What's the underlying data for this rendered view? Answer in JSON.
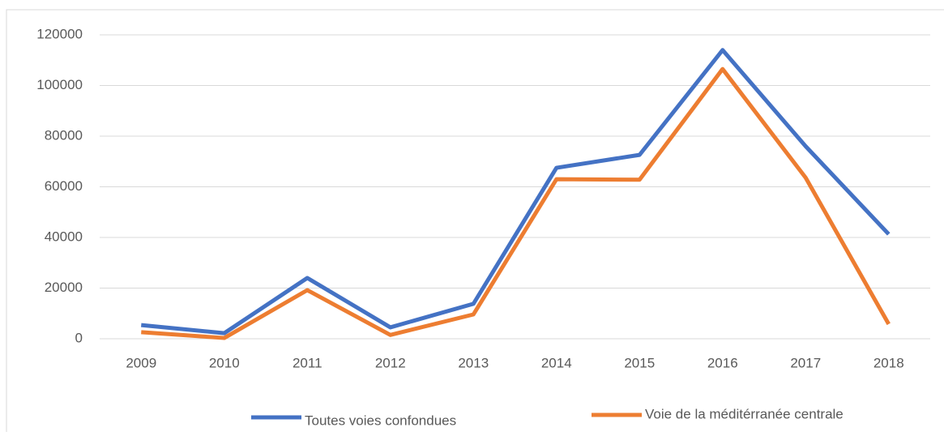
{
  "chart_data": {
    "type": "line",
    "categories": [
      "2009",
      "2010",
      "2011",
      "2012",
      "2013",
      "2014",
      "2015",
      "2016",
      "2017",
      "2018"
    ],
    "series": [
      {
        "name": "Toutes voies confondues",
        "color": "#4472c4",
        "values": [
          5400,
          2200,
          24000,
          4500,
          13800,
          67500,
          72600,
          114000,
          76000,
          41300
        ]
      },
      {
        "name": "Voie de la méditérranée centrale",
        "color": "#ed7d31",
        "values": [
          2600,
          300,
          19200,
          1500,
          9600,
          63000,
          62800,
          106500,
          63600,
          5800
        ]
      }
    ],
    "ylim": [
      0,
      120000
    ],
    "yticks": [
      0,
      20000,
      40000,
      60000,
      80000,
      100000,
      120000
    ],
    "grid": true
  }
}
